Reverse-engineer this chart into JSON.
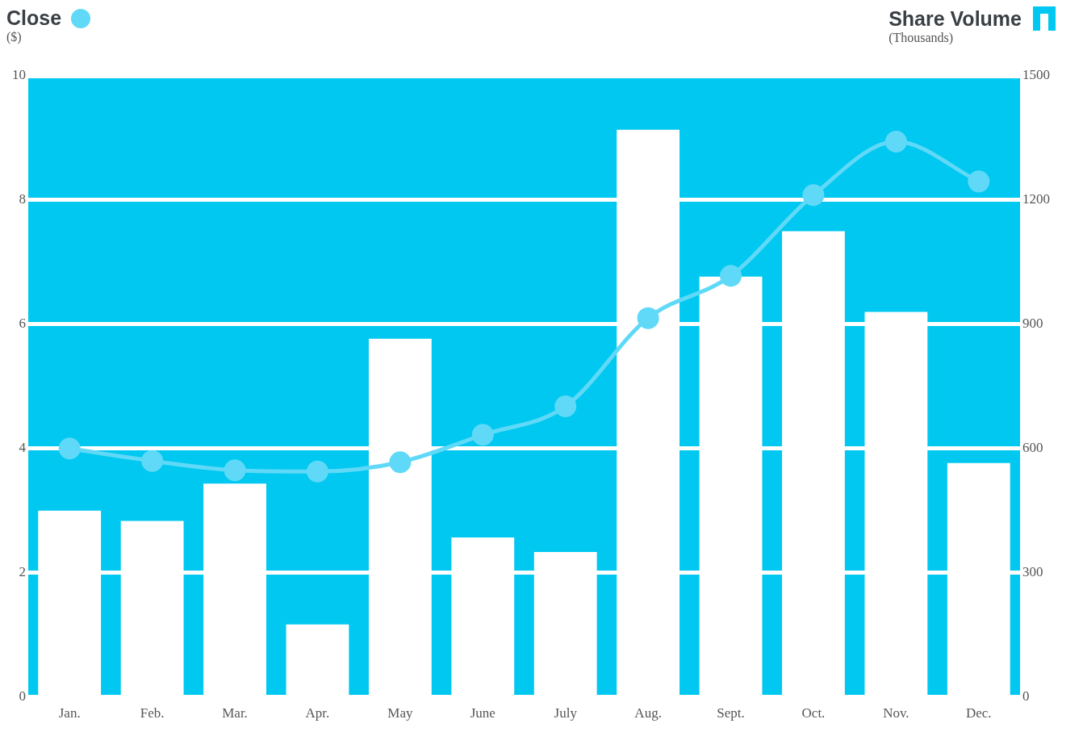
{
  "chart_data": {
    "type": "bar",
    "categories": [
      "Jan.",
      "Feb.",
      "Mar.",
      "Apr.",
      "May",
      "June",
      "July",
      "Aug.",
      "Sept.",
      "Oct.",
      "Nov.",
      "Dec."
    ],
    "series": [
      {
        "name": "Share Volume",
        "axis": "y2",
        "color": "#ffffff",
        "values": [
          450,
          425,
          515,
          175,
          865,
          385,
          350,
          1370,
          1015,
          1125,
          930,
          565
        ]
      },
      {
        "name": "Close",
        "type": "line",
        "axis": "y",
        "color": "#5fd9f7",
        "marker": "circle",
        "values": [
          4.0,
          3.8,
          3.65,
          3.63,
          3.78,
          4.22,
          4.68,
          6.1,
          6.78,
          8.08,
          8.94,
          8.3
        ]
      }
    ],
    "ylabel": "($)",
    "y2label": "(Thousands)",
    "ylim": [
      0,
      10
    ],
    "yticks": [
      0,
      2,
      4,
      6,
      8,
      10
    ],
    "y2lim": [
      0,
      1500
    ],
    "y2ticks": [
      0,
      300,
      600,
      900,
      1200,
      1500
    ],
    "grid": "y",
    "legend": "top"
  }
}
